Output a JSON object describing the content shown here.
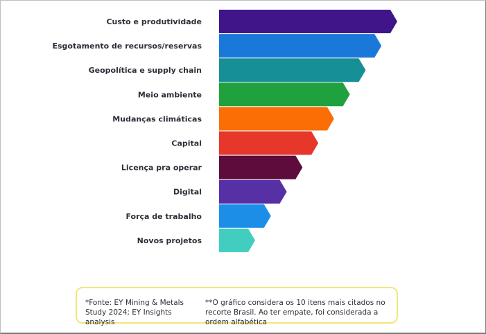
{
  "chart_data": {
    "type": "bar",
    "orientation": "horizontal",
    "categories": [
      "Custo e produtividade",
      "Esgotamento de recursos/reservas",
      "Geopolítica e supply chain",
      "Meio ambiente",
      "Mudanças climáticas",
      "Capital",
      "Licença pra operar",
      "Digital",
      "Força de trabalho",
      "Novos projetos"
    ],
    "values": [
      10,
      9,
      8,
      7,
      6,
      5,
      4,
      3,
      2,
      1
    ],
    "colors": [
      "#3f1589",
      "#1a79d8",
      "#178f96",
      "#1fa23d",
      "#fb6e05",
      "#e7362a",
      "#5e0c3b",
      "#5730a6",
      "#1c8ee8",
      "#41cec1"
    ],
    "axes_visible": false,
    "grid": false,
    "legend": "none"
  },
  "footnote": {
    "source": "*Fonte: EY Mining & Metals Study 2024; EY Insights analysis",
    "method": "**O gráfico considera os 10 itens mais citados no recorte Brasil. Ao ter empate, foi considerada a ordem alfabética"
  }
}
